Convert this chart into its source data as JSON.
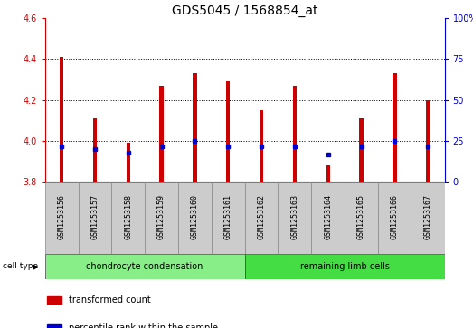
{
  "title": "GDS5045 / 1568854_at",
  "samples": [
    "GSM1253156",
    "GSM1253157",
    "GSM1253158",
    "GSM1253159",
    "GSM1253160",
    "GSM1253161",
    "GSM1253162",
    "GSM1253163",
    "GSM1253164",
    "GSM1253165",
    "GSM1253166",
    "GSM1253167"
  ],
  "transformed_count": [
    4.41,
    4.11,
    3.99,
    4.27,
    4.33,
    4.29,
    4.15,
    4.27,
    3.88,
    4.11,
    4.33,
    4.2
  ],
  "percentile_rank": [
    22,
    20,
    18,
    22,
    25,
    22,
    22,
    22,
    17,
    22,
    25,
    22
  ],
  "bar_bottom": 3.8,
  "ylim": [
    3.8,
    4.6
  ],
  "y_ticks_left": [
    3.8,
    4.0,
    4.2,
    4.4,
    4.6
  ],
  "y_ticks_right_vals": [
    0,
    25,
    50,
    75,
    100
  ],
  "y_ticks_right_labels": [
    "0",
    "25",
    "50",
    "75",
    "100%"
  ],
  "bar_color": "#cc0000",
  "dot_color": "#0000cc",
  "left_axis_color": "#cc0000",
  "right_axis_color": "#0000cc",
  "grid_dotted_at": [
    4.0,
    4.2,
    4.4
  ],
  "cell_type_groups": [
    {
      "label": "chondrocyte condensation",
      "indices": [
        0,
        1,
        2,
        3,
        4,
        5
      ],
      "color": "#88ee88"
    },
    {
      "label": "remaining limb cells",
      "indices": [
        6,
        7,
        8,
        9,
        10,
        11
      ],
      "color": "#44dd44"
    }
  ],
  "legend_items": [
    {
      "label": "transformed count",
      "color": "#cc0000",
      "marker": "s"
    },
    {
      "label": "percentile rank within the sample",
      "color": "#0000cc",
      "marker": "s"
    }
  ],
  "cell_type_label": "cell type",
  "title_fontsize": 10,
  "tick_fontsize": 7,
  "sample_label_fontsize": 6,
  "cell_type_fontsize": 7,
  "legend_fontsize": 7
}
